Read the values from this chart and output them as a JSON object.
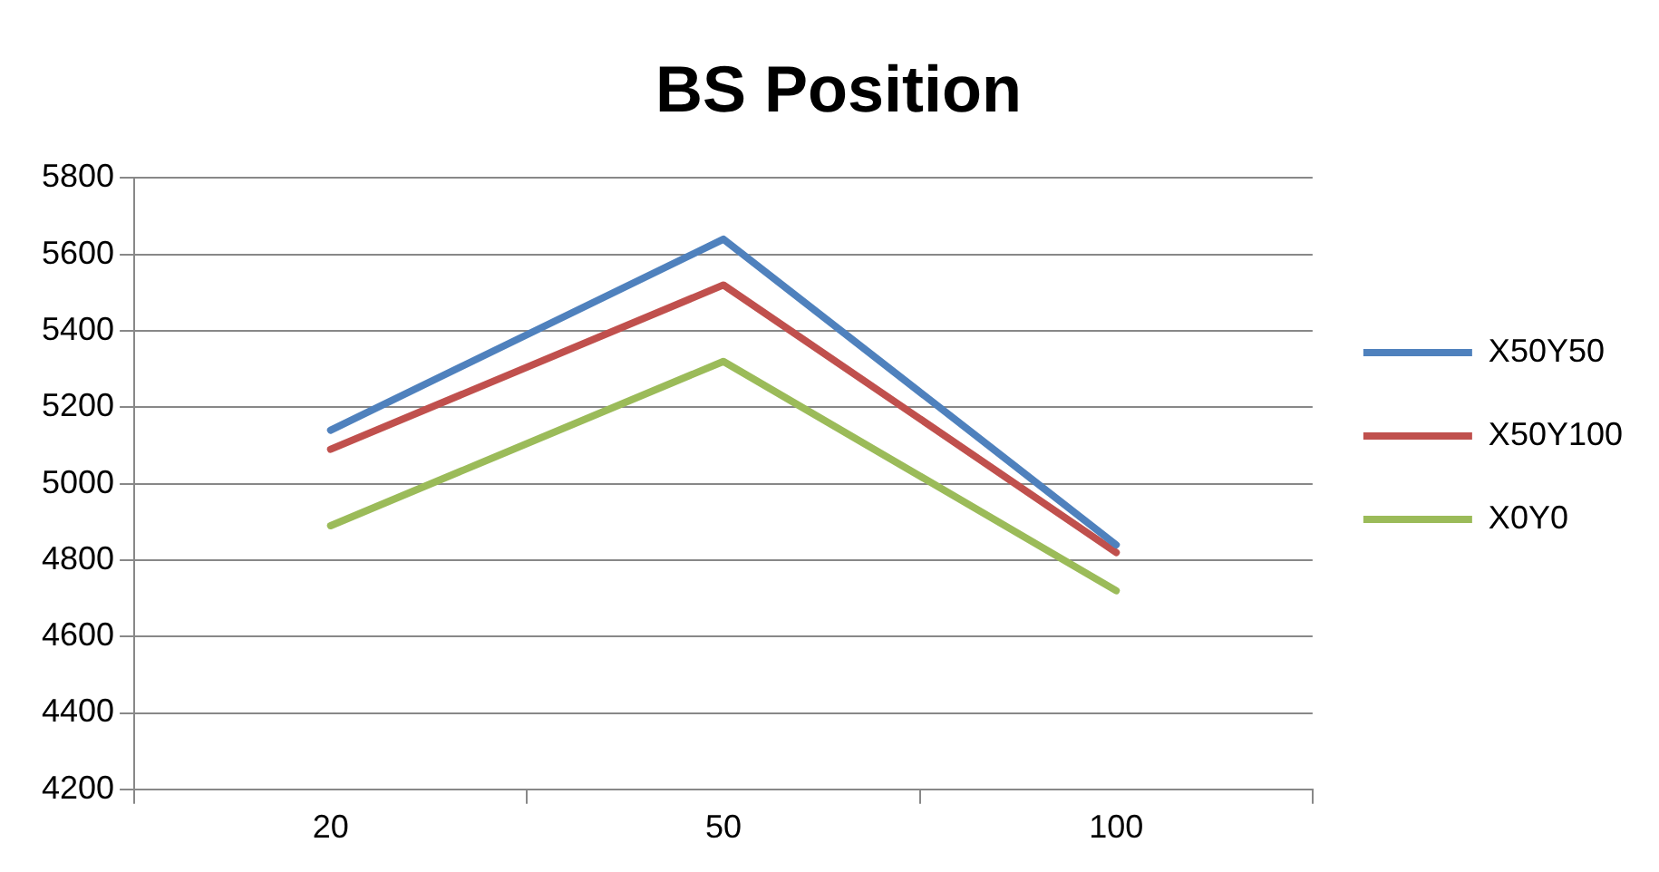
{
  "chart_data": {
    "type": "line",
    "title": "BS Position",
    "categories": [
      "20",
      "50",
      "100"
    ],
    "series": [
      {
        "name": "X50Y50",
        "color": "#4f81bd",
        "values": [
          5140,
          5640,
          4840
        ]
      },
      {
        "name": "X50Y100",
        "color": "#c0504d",
        "values": [
          5090,
          5520,
          4820
        ]
      },
      {
        "name": "X0Y0",
        "color": "#9bbb59",
        "values": [
          4890,
          5320,
          4720
        ]
      }
    ],
    "ylim": [
      4200,
      5800
    ],
    "yticks": [
      4200,
      4400,
      4600,
      4800,
      5000,
      5200,
      5400,
      5600,
      5800
    ],
    "grid": "y",
    "legend": "right",
    "marker": "none",
    "line_style": "solid"
  }
}
